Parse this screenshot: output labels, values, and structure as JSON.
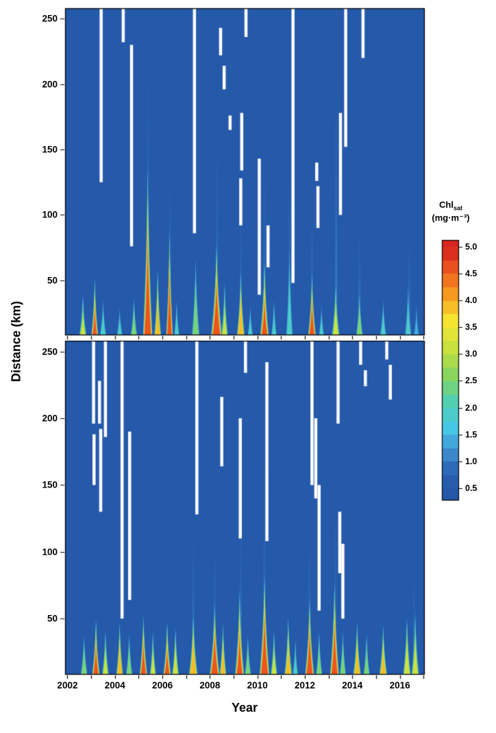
{
  "chart_data": {
    "type": "heatmap",
    "title": "",
    "xlabel": "Year",
    "ylabel": "Distance (km)",
    "x_range": [
      2002,
      2017
    ],
    "x_minor_tick_step_years": 1,
    "x_tick_labels": [
      2002,
      2004,
      2006,
      2008,
      2010,
      2012,
      2014,
      2016
    ],
    "y_range_km": [
      8,
      258
    ],
    "y_tick_labels": [
      50,
      100,
      150,
      200,
      250
    ],
    "colorbar": {
      "title_main": "Chl",
      "title_sub": "sat",
      "units": "(mg·m⁻³)",
      "tick_values": [
        5.0,
        4.5,
        4.0,
        3.5,
        3.0,
        2.5,
        2.0,
        1.5,
        1.0,
        0.5
      ],
      "value_range": [
        0.27,
        5.125
      ],
      "background_value": 0.45,
      "stops": [
        {
          "v": 0.0,
          "color": "#1f4da0"
        },
        {
          "v": 0.8,
          "color": "#2a62b2"
        },
        {
          "v": 1.2,
          "color": "#3f8fd0"
        },
        {
          "v": 1.6,
          "color": "#45c6e8"
        },
        {
          "v": 2.1,
          "color": "#4fd0b2"
        },
        {
          "v": 2.6,
          "color": "#86d45f"
        },
        {
          "v": 3.1,
          "color": "#c8e03e"
        },
        {
          "v": 3.6,
          "color": "#f6e832"
        },
        {
          "v": 4.1,
          "color": "#f79d1e"
        },
        {
          "v": 4.6,
          "color": "#ec5420"
        },
        {
          "v": 5.0,
          "color": "#d31f1f"
        }
      ]
    },
    "plume_format": [
      "year",
      "peak_chl_mg_m3",
      "top_km",
      "width_yr"
    ],
    "gap_format": [
      "year",
      "km_low",
      "km_high"
    ],
    "streak_format": [
      "year",
      "top_km",
      "value"
    ],
    "panels": [
      {
        "name": "top",
        "plumes": [
          [
            2002.65,
            3.2,
            42,
            0.32
          ],
          [
            2003.15,
            4.6,
            55,
            0.3
          ],
          [
            2003.5,
            2.4,
            38,
            0.28
          ],
          [
            2004.2,
            2.0,
            32,
            0.26
          ],
          [
            2004.8,
            3.0,
            40,
            0.28
          ],
          [
            2005.38,
            5.0,
            148,
            0.42
          ],
          [
            2005.8,
            4.2,
            62,
            0.3
          ],
          [
            2006.3,
            5.0,
            95,
            0.3
          ],
          [
            2006.6,
            2.2,
            38,
            0.24
          ],
          [
            2007.4,
            2.8,
            72,
            0.34
          ],
          [
            2008.28,
            5.0,
            82,
            0.48
          ],
          [
            2008.62,
            3.2,
            52,
            0.3
          ],
          [
            2009.3,
            4.4,
            60,
            0.34
          ],
          [
            2009.7,
            2.0,
            34,
            0.24
          ],
          [
            2010.3,
            4.6,
            68,
            0.38
          ],
          [
            2010.7,
            2.4,
            38,
            0.24
          ],
          [
            2011.35,
            2.2,
            85,
            0.3
          ],
          [
            2012.3,
            4.8,
            58,
            0.34
          ],
          [
            2012.7,
            2.0,
            34,
            0.24
          ],
          [
            2013.3,
            3.4,
            52,
            0.34
          ],
          [
            2014.3,
            3.0,
            44,
            0.3
          ],
          [
            2015.3,
            2.2,
            38,
            0.28
          ],
          [
            2016.35,
            2.0,
            52,
            0.3
          ],
          [
            2016.7,
            1.8,
            34,
            0.24
          ]
        ],
        "streaks": [
          [
            2005.4,
            255,
            0.85
          ],
          [
            2006.32,
            160,
            0.75
          ],
          [
            2008.3,
            185,
            0.75
          ],
          [
            2009.3,
            120,
            0.7
          ],
          [
            2010.3,
            165,
            0.72
          ],
          [
            2011.35,
            150,
            0.68
          ],
          [
            2012.3,
            130,
            0.72
          ],
          [
            2013.32,
            250,
            0.68
          ],
          [
            2014.3,
            110,
            0.68
          ],
          [
            2016.4,
            95,
            0.68
          ]
        ],
        "gaps": [
          [
            2003.42,
            125,
            258
          ],
          [
            2004.35,
            232,
            258
          ],
          [
            2004.7,
            76,
            230
          ],
          [
            2007.35,
            86,
            258
          ],
          [
            2008.45,
            222,
            243
          ],
          [
            2008.6,
            196,
            214
          ],
          [
            2008.85,
            165,
            176
          ],
          [
            2009.3,
            92,
            128
          ],
          [
            2009.34,
            134,
            178
          ],
          [
            2009.52,
            236,
            258
          ],
          [
            2010.08,
            39,
            143
          ],
          [
            2010.45,
            60,
            92
          ],
          [
            2011.5,
            48,
            258
          ],
          [
            2012.5,
            126,
            140
          ],
          [
            2012.55,
            90,
            122
          ],
          [
            2013.5,
            100,
            178
          ],
          [
            2013.72,
            152,
            258
          ],
          [
            2014.45,
            220,
            258
          ]
        ]
      },
      {
        "name": "bottom",
        "plumes": [
          [
            2002.7,
            3.0,
            40,
            0.3
          ],
          [
            2003.2,
            4.8,
            52,
            0.34
          ],
          [
            2003.6,
            3.4,
            44,
            0.3
          ],
          [
            2004.2,
            4.4,
            50,
            0.3
          ],
          [
            2004.6,
            3.0,
            42,
            0.28
          ],
          [
            2005.2,
            4.8,
            55,
            0.34
          ],
          [
            2005.6,
            3.4,
            44,
            0.28
          ],
          [
            2006.2,
            4.6,
            50,
            0.34
          ],
          [
            2006.55,
            3.8,
            46,
            0.3
          ],
          [
            2007.3,
            4.4,
            56,
            0.38
          ],
          [
            2008.2,
            5.0,
            64,
            0.44
          ],
          [
            2008.55,
            4.0,
            50,
            0.3
          ],
          [
            2009.25,
            4.6,
            75,
            0.4
          ],
          [
            2009.6,
            3.0,
            40,
            0.28
          ],
          [
            2010.3,
            5.0,
            88,
            0.44
          ],
          [
            2010.7,
            3.4,
            44,
            0.3
          ],
          [
            2011.3,
            4.0,
            54,
            0.34
          ],
          [
            2011.6,
            2.4,
            38,
            0.24
          ],
          [
            2012.2,
            5.0,
            68,
            0.4
          ],
          [
            2012.6,
            3.0,
            44,
            0.28
          ],
          [
            2013.25,
            4.8,
            82,
            0.4
          ],
          [
            2013.6,
            3.0,
            44,
            0.28
          ],
          [
            2014.2,
            4.2,
            50,
            0.34
          ],
          [
            2014.6,
            3.0,
            42,
            0.28
          ],
          [
            2015.3,
            4.0,
            48,
            0.34
          ],
          [
            2016.3,
            3.8,
            54,
            0.34
          ],
          [
            2016.65,
            3.4,
            58,
            0.34
          ]
        ],
        "streaks": [
          [
            2007.3,
            140,
            0.72
          ],
          [
            2008.2,
            130,
            0.72
          ],
          [
            2009.3,
            150,
            0.7
          ],
          [
            2010.3,
            190,
            0.72
          ],
          [
            2012.2,
            140,
            0.7
          ],
          [
            2013.28,
            160,
            0.7
          ],
          [
            2016.6,
            100,
            0.7
          ]
        ],
        "gaps": [
          [
            2003.1,
            196,
            258
          ],
          [
            2003.12,
            150,
            188
          ],
          [
            2003.35,
            196,
            228
          ],
          [
            2003.4,
            130,
            192
          ],
          [
            2003.6,
            186,
            258
          ],
          [
            2004.3,
            50,
            258
          ],
          [
            2004.62,
            64,
            190
          ],
          [
            2007.45,
            128,
            258
          ],
          [
            2008.5,
            164,
            216
          ],
          [
            2009.28,
            110,
            200
          ],
          [
            2009.5,
            234,
            258
          ],
          [
            2010.4,
            108,
            242
          ],
          [
            2012.3,
            150,
            258
          ],
          [
            2012.46,
            140,
            200
          ],
          [
            2012.6,
            56,
            150
          ],
          [
            2013.4,
            196,
            258
          ],
          [
            2013.47,
            84,
            130
          ],
          [
            2013.6,
            50,
            106
          ],
          [
            2014.35,
            240,
            258
          ],
          [
            2014.55,
            224,
            236
          ],
          [
            2015.45,
            244,
            258
          ],
          [
            2015.6,
            214,
            240
          ]
        ]
      }
    ]
  }
}
